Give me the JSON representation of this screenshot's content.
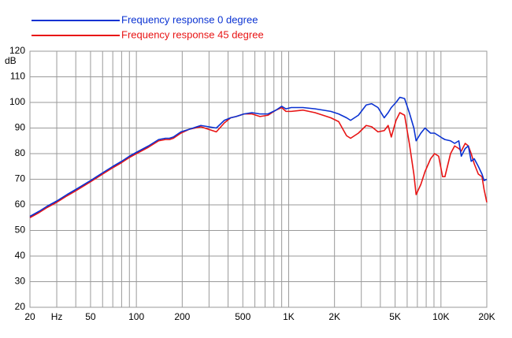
{
  "chart_data": {
    "type": "line",
    "ylabel": "dB",
    "xscale": "log",
    "x": [
      20,
      23,
      26,
      30,
      35,
      40,
      50,
      60,
      70,
      80,
      90,
      100,
      120,
      140,
      155,
      165,
      175,
      196,
      222,
      265,
      298,
      335,
      378,
      416,
      452,
      509,
      574,
      648,
      732,
      826,
      900,
      960,
      1040,
      1240,
      1490,
      1680,
      1890,
      2130,
      2400,
      2550,
      2870,
      3230,
      3510,
      3860,
      4240,
      4500,
      4720,
      5070,
      5370,
      5770,
      6200,
      6640,
      6870,
      7380,
      7860,
      8550,
      9080,
      9660,
      10250,
      10620,
      11560,
      12300,
      13100,
      13600,
      14430,
      15130,
      15800,
      16550,
      17600,
      18600,
      19200,
      20000
    ],
    "series": [
      {
        "name": "Frequency response 0 degree",
        "color": "#0a32d2",
        "values": [
          55.5,
          57.5,
          59.5,
          61.5,
          64,
          66,
          69.5,
          72.5,
          75,
          77,
          79,
          80.5,
          83,
          85.5,
          86,
          86,
          86.5,
          88.5,
          89.5,
          91,
          90.5,
          90,
          93,
          94,
          94.5,
          95.5,
          96,
          95.5,
          95.5,
          97,
          98.5,
          97.5,
          98,
          98,
          97.5,
          97,
          96.5,
          95.5,
          94,
          93,
          95,
          99,
          99.5,
          98,
          94,
          96,
          98,
          100,
          102,
          101.5,
          96,
          90,
          85,
          88,
          90,
          88,
          88,
          87,
          86,
          85.5,
          85,
          84,
          85,
          79,
          82,
          83,
          77,
          78,
          75,
          72,
          69.5,
          70
        ]
      },
      {
        "name": "Frequency response 45 degree",
        "color": "#e81414",
        "values": [
          55,
          57,
          59,
          61,
          63.5,
          65.5,
          69,
          72,
          74.5,
          76.5,
          78.5,
          80,
          82.5,
          85,
          85.5,
          85.5,
          86,
          88,
          89.5,
          90.5,
          89.5,
          88.5,
          92,
          94,
          94.5,
          95.5,
          95.5,
          94.5,
          95,
          97,
          98,
          96.5,
          96.5,
          97,
          96,
          95,
          94,
          92.5,
          87,
          86,
          88,
          91,
          90.5,
          88.5,
          89,
          91,
          86.5,
          93,
          96,
          95,
          84,
          72,
          64,
          68,
          73,
          78,
          80,
          79,
          71,
          71,
          80,
          83,
          82,
          81,
          84,
          83,
          80,
          76,
          72,
          71,
          66,
          61
        ]
      }
    ],
    "xlim": [
      20,
      20000
    ],
    "xticks": [
      20,
      {
        "value": 30,
        "label": "Hz"
      },
      50,
      100,
      200,
      500,
      {
        "value": 1000,
        "label": "1K"
      },
      {
        "value": 2000,
        "label": "2K"
      },
      {
        "value": 5000,
        "label": "5K"
      },
      {
        "value": 10000,
        "label": "10K"
      },
      {
        "value": 20000,
        "label": "20K"
      }
    ],
    "x_minor_gridlines": [
      40,
      60,
      70,
      80,
      90,
      300,
      400,
      600,
      700,
      800,
      900,
      3000,
      4000,
      6000,
      7000,
      8000,
      9000
    ],
    "ylim": [
      20,
      120
    ],
    "yticks": [
      20,
      30,
      40,
      50,
      60,
      70,
      80,
      90,
      100,
      110,
      120
    ],
    "grid": true
  }
}
